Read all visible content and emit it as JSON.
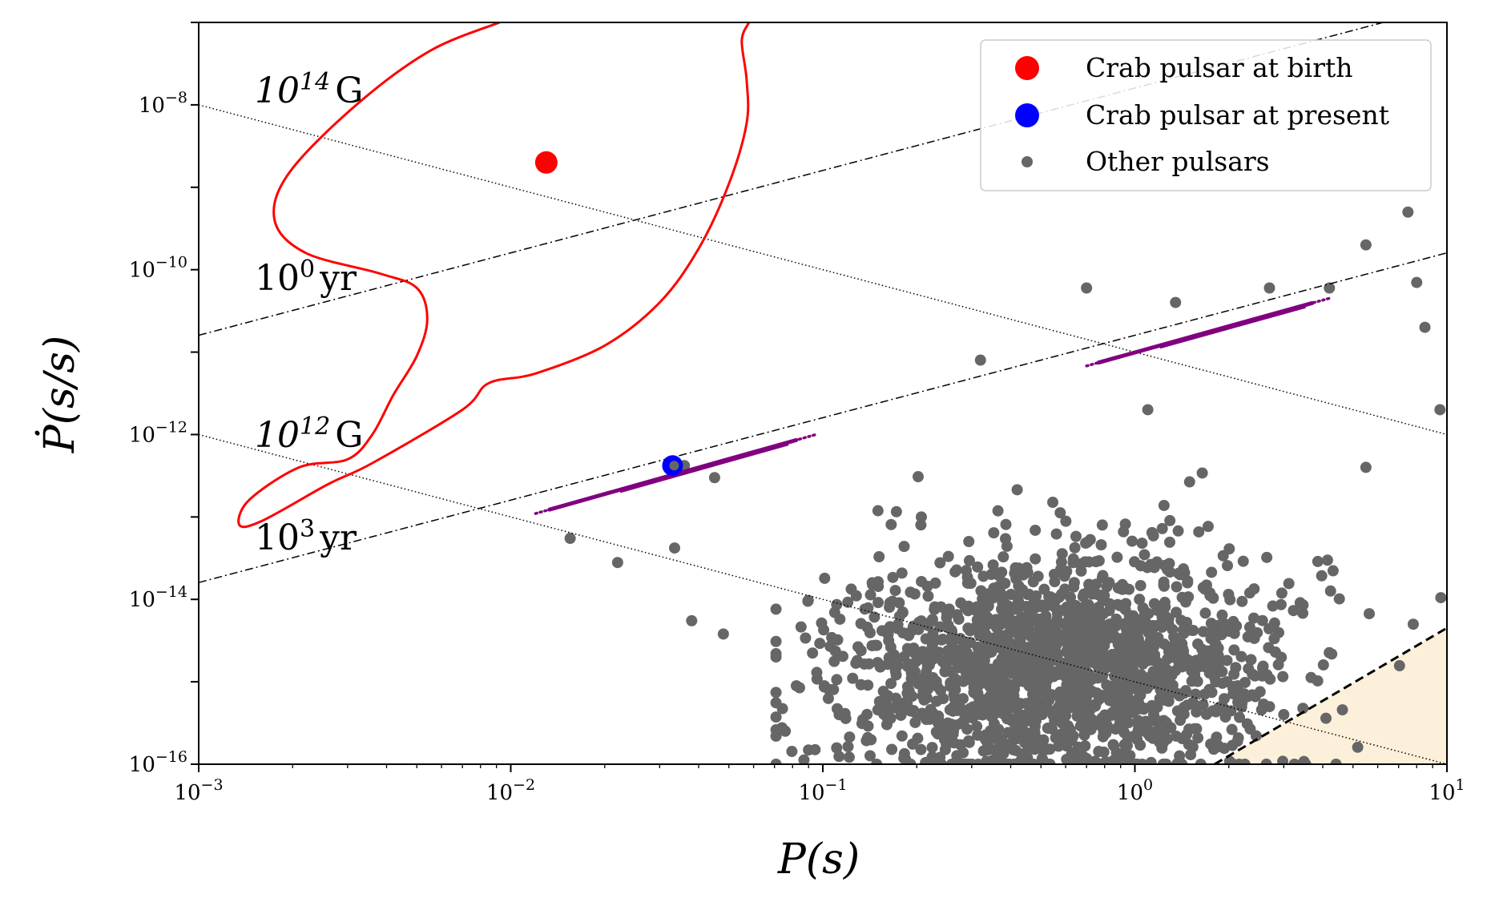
{
  "chart_data": {
    "type": "scatter",
    "title": "",
    "xlabel": "P(s)",
    "ylabel": "Ṗ(s/s)",
    "xscale": "log",
    "yscale": "log",
    "xlim": [
      0.001,
      10
    ],
    "ylim": [
      1e-16,
      1e-07
    ],
    "x_ticks": [
      {
        "value": 0.001,
        "base": "10",
        "exp": "−3"
      },
      {
        "value": 0.01,
        "base": "10",
        "exp": "−2"
      },
      {
        "value": 0.1,
        "base": "10",
        "exp": "−1"
      },
      {
        "value": 1,
        "base": "10",
        "exp": "0"
      },
      {
        "value": 10,
        "base": "10",
        "exp": "1"
      }
    ],
    "y_ticks": [
      {
        "value": 1e-08,
        "base": "10",
        "exp": "−8"
      },
      {
        "value": 1e-10,
        "base": "10",
        "exp": "−10"
      },
      {
        "value": 1e-12,
        "base": "10",
        "exp": "−12"
      },
      {
        "value": 1e-14,
        "base": "10",
        "exp": "−14"
      },
      {
        "value": 1e-16,
        "base": "10",
        "exp": "−16"
      }
    ],
    "legend": {
      "position": "top-right",
      "entries": [
        {
          "label": "Crab pulsar at birth",
          "color": "#ff0000",
          "marker": "large-circle"
        },
        {
          "label": "Crab pulsar at present",
          "color": "#0000ff",
          "marker": "large-circle"
        },
        {
          "label": "Other pulsars",
          "color": "#666666",
          "marker": "small-circle"
        }
      ]
    },
    "series": [
      {
        "name": "Crab pulsar at birth",
        "color": "#ff0000",
        "points": [
          [
            0.013,
            2e-09
          ]
        ]
      },
      {
        "name": "Crab pulsar at present",
        "color": "#0000ff",
        "points": [
          [
            0.033,
            4.2e-13
          ]
        ]
      },
      {
        "name": "Other pulsars",
        "color": "#666666",
        "count": 1800,
        "distribution": {
          "log10_P_mean": -0.25,
          "log10_P_std": 0.35,
          "log10_Pdot_mean": -14.85,
          "log10_Pdot_std": 0.7
        },
        "outliers": [
          [
            0.0155,
            5.5e-14
          ],
          [
            0.022,
            2.8e-14
          ],
          [
            0.0335,
            4.2e-14
          ],
          [
            0.036,
            4.2e-13
          ],
          [
            0.045,
            3e-13
          ],
          [
            0.038,
            5.5e-15
          ],
          [
            0.048,
            3.8e-15
          ],
          [
            0.7,
            6e-11
          ],
          [
            1.35,
            4e-11
          ],
          [
            0.32,
            8e-12
          ],
          [
            1.1,
            2e-12
          ],
          [
            2.7,
            6e-11
          ],
          [
            7.5,
            5e-10
          ],
          [
            4.2,
            6e-11
          ],
          [
            5.5,
            2e-10
          ],
          [
            8.0,
            7e-11
          ],
          [
            9.5,
            2e-12
          ],
          [
            8.5,
            2e-11
          ],
          [
            7.8,
            5e-15
          ],
          [
            5.5,
            4e-13
          ],
          [
            3.0,
            4e-16
          ],
          [
            2.7,
            5e-16
          ]
        ]
      }
    ],
    "reference_lines": [
      {
        "kind": "constant-B",
        "label_base": "10",
        "label_exp": "14",
        "label_unit": "G",
        "style": "dotted",
        "points": [
          [
            0.001,
            1e-08
          ],
          [
            10,
            1e-12
          ]
        ]
      },
      {
        "kind": "constant-B",
        "label_base": "10",
        "label_exp": "12",
        "label_unit": "G",
        "style": "dotted",
        "points": [
          [
            0.001,
            1e-12
          ],
          [
            10,
            1e-16
          ]
        ]
      },
      {
        "kind": "constant-age",
        "label_base": "10",
        "label_exp": "0",
        "label_unit": "yr",
        "style": "dashdot",
        "points": [
          [
            0.001,
            1.6e-11
          ],
          [
            10,
            1.6e-07
          ]
        ]
      },
      {
        "kind": "constant-age",
        "label_base": "10",
        "label_exp": "3",
        "label_unit": "yr",
        "style": "dashdot",
        "points": [
          [
            0.001,
            1.6e-14
          ],
          [
            10,
            1.6e-10
          ]
        ]
      },
      {
        "kind": "death-line",
        "style": "dashed",
        "points": [
          [
            1.8,
            1e-16
          ],
          [
            10,
            4.5e-15
          ]
        ]
      }
    ],
    "tracks": [
      {
        "name": "track-1",
        "color": "#800080",
        "points": [
          [
            0.012,
            1.1e-13
          ],
          [
            0.095,
            1e-12
          ]
        ]
      },
      {
        "name": "track-2",
        "color": "#800080",
        "points": [
          [
            0.7,
            6.8e-12
          ],
          [
            4.2,
            4.5e-11
          ]
        ]
      }
    ],
    "contour": {
      "color": "#ff0000",
      "points": [
        [
          0.0092,
          1e-07
        ],
        [
          0.0055,
          4.5e-08
        ],
        [
          0.0032,
          1e-08
        ],
        [
          0.00195,
          1.5e-09
        ],
        [
          0.00175,
          4e-10
        ],
        [
          0.0022,
          1.6e-10
        ],
        [
          0.0038,
          9e-11
        ],
        [
          0.005,
          6e-11
        ],
        [
          0.0054,
          2.5e-11
        ],
        [
          0.005,
          9e-12
        ],
        [
          0.0042,
          3e-12
        ],
        [
          0.0036,
          1e-12
        ],
        [
          0.003,
          5e-13
        ],
        [
          0.0021,
          4e-13
        ],
        [
          0.00145,
          1.6e-13
        ],
        [
          0.00135,
          8e-14
        ],
        [
          0.0016,
          9e-14
        ],
        [
          0.0026,
          2.5e-13
        ],
        [
          0.0036,
          4.5e-13
        ],
        [
          0.007,
          2e-12
        ],
        [
          0.0085,
          4.2e-12
        ],
        [
          0.012,
          5.5e-12
        ],
        [
          0.02,
          1.2e-11
        ],
        [
          0.03,
          4e-11
        ],
        [
          0.04,
          1.8e-10
        ],
        [
          0.05,
          1.1e-09
        ],
        [
          0.057,
          6e-09
        ],
        [
          0.057,
          2e-08
        ],
        [
          0.055,
          6e-08
        ],
        [
          0.058,
          1e-07
        ]
      ]
    },
    "shaded_region": {
      "color": "#fdf0da",
      "points": [
        [
          1.8,
          1e-16
        ],
        [
          10,
          4.5e-15
        ],
        [
          10,
          1e-16
        ]
      ]
    }
  }
}
